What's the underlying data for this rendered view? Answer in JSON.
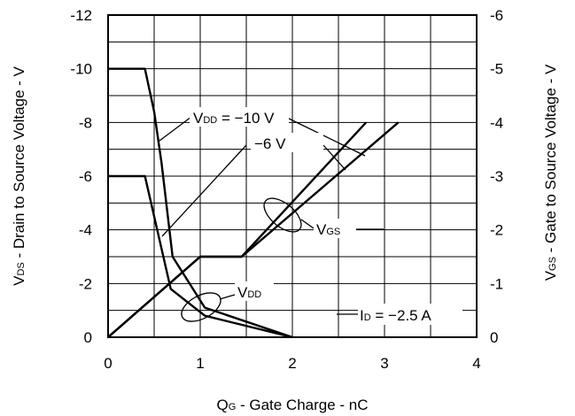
{
  "chart_data": {
    "type": "line",
    "xlabel": {
      "main": "Q",
      "sub": "G",
      "rest": " - Gate Charge - nC"
    },
    "ylabel_left": {
      "main": "V",
      "sub": "DS",
      "rest": " - Drain to Source Voltage - V"
    },
    "ylabel_right": {
      "main": "V",
      "sub": "GS",
      "rest": " - Gate to Source Voltage - V"
    },
    "xlim": [
      0,
      4
    ],
    "ylim_left": [
      0,
      -12
    ],
    "ylim_right": [
      0,
      -6
    ],
    "x_ticks": [
      0,
      1,
      2,
      3,
      4
    ],
    "x_tick_labels": [
      "0",
      "1",
      "2",
      "3",
      "4"
    ],
    "y_left_ticks": [
      0,
      -2,
      -4,
      -6,
      -8,
      -10,
      -12
    ],
    "y_left_tick_labels": [
      "0",
      "-2",
      "-4",
      "-6",
      "-8",
      "-10",
      "-12"
    ],
    "y_right_ticks": [
      0,
      -1,
      -2,
      -3,
      -4,
      -5,
      -6
    ],
    "y_right_tick_labels": [
      "0",
      "-1",
      "-2",
      "-3",
      "-4",
      "-5",
      "-6"
    ],
    "grid": true,
    "series": [
      {
        "axis": "left",
        "x": [
          0,
          0.4,
          0.5,
          0.58,
          0.7,
          1.05,
          2.0
        ],
        "y": [
          -10,
          -10,
          -8.4,
          -6.5,
          -3,
          -1.1,
          0
        ]
      },
      {
        "axis": "left",
        "x": [
          0,
          0.4,
          0.5,
          0.58,
          0.68,
          1.05,
          2.0
        ],
        "y": [
          -6,
          -6,
          -4.5,
          -3.3,
          -1.8,
          -0.8,
          0
        ]
      },
      {
        "axis": "right",
        "x": [
          0,
          1.0,
          1.1,
          1.45,
          2.8
        ],
        "y": [
          0,
          -1.5,
          -1.5,
          -1.5,
          -4
        ]
      },
      {
        "axis": "right",
        "x": [
          0,
          1.0,
          1.1,
          1.45,
          3.15
        ],
        "y": [
          0,
          -1.5,
          -1.5,
          -1.5,
          -4
        ]
      }
    ],
    "annotations": {
      "vdd10": {
        "main": "V",
        "sub": "DD",
        "rest": " = −10 V"
      },
      "vdd6": "−6 V",
      "vgs": {
        "main": "V",
        "sub": "GS"
      },
      "vdd": {
        "main": "V",
        "sub": "DD"
      },
      "id": {
        "main": "I",
        "sub": "D",
        "rest": " = −2.5 A"
      }
    }
  }
}
